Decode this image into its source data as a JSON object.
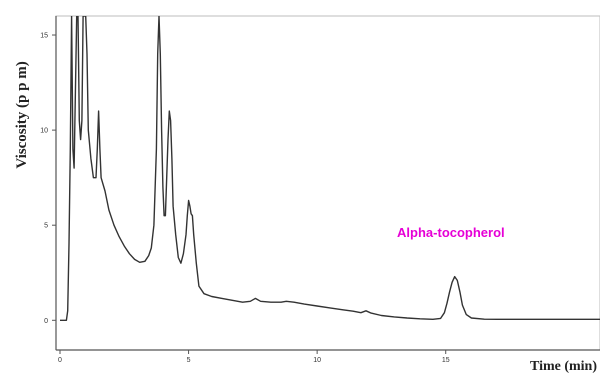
{
  "chart_data": {
    "type": "line",
    "title": "",
    "xlabel": "Time (min)",
    "ylabel": "Viscosity (p p m)",
    "xlim": [
      0,
      21
    ],
    "ylim": [
      -0.3,
      16
    ],
    "grid": false,
    "x_ticks": [
      0,
      5,
      10,
      15
    ],
    "y_ticks": [
      0,
      5,
      10,
      15
    ],
    "x_tick_labels": [
      "0",
      "5",
      "10",
      "15"
    ],
    "y_tick_labels": [
      "0",
      "5",
      "10",
      "15"
    ],
    "line_color": "#333333",
    "annotation": {
      "text": "Alpha-tocopherol",
      "x": 15.2,
      "y": 2.8,
      "color": "#e600d6"
    },
    "series": [
      {
        "values": [
          [
            0,
            0
          ],
          [
            0.25,
            0
          ],
          [
            0.3,
            0.5
          ],
          [
            0.35,
            4
          ],
          [
            0.4,
            9
          ],
          [
            0.45,
            16
          ],
          [
            0.5,
            9
          ],
          [
            0.55,
            8
          ],
          [
            0.65,
            16
          ],
          [
            0.7,
            16
          ],
          [
            0.75,
            10.5
          ],
          [
            0.8,
            9.5
          ],
          [
            0.85,
            10.5
          ],
          [
            0.9,
            16
          ],
          [
            1.0,
            16
          ],
          [
            1.05,
            14
          ],
          [
            1.1,
            10
          ],
          [
            1.2,
            8.5
          ],
          [
            1.3,
            7.5
          ],
          [
            1.4,
            7.5
          ],
          [
            1.45,
            9
          ],
          [
            1.5,
            11
          ],
          [
            1.55,
            9
          ],
          [
            1.6,
            7.5
          ],
          [
            1.75,
            6.8
          ],
          [
            1.9,
            5.8
          ],
          [
            2.1,
            5.0
          ],
          [
            2.3,
            4.4
          ],
          [
            2.5,
            3.9
          ],
          [
            2.7,
            3.5
          ],
          [
            2.9,
            3.2
          ],
          [
            3.1,
            3.05
          ],
          [
            3.3,
            3.1
          ],
          [
            3.45,
            3.4
          ],
          [
            3.55,
            3.8
          ],
          [
            3.65,
            5.0
          ],
          [
            3.75,
            9
          ],
          [
            3.8,
            14
          ],
          [
            3.85,
            16
          ],
          [
            3.9,
            14
          ],
          [
            3.95,
            10
          ],
          [
            4.0,
            7.0
          ],
          [
            4.05,
            5.5
          ],
          [
            4.1,
            5.5
          ],
          [
            4.15,
            7.5
          ],
          [
            4.2,
            9.5
          ],
          [
            4.25,
            11
          ],
          [
            4.3,
            10.5
          ],
          [
            4.35,
            8.5
          ],
          [
            4.4,
            6.0
          ],
          [
            4.5,
            4.5
          ],
          [
            4.6,
            3.3
          ],
          [
            4.7,
            3.0
          ],
          [
            4.8,
            3.5
          ],
          [
            4.9,
            4.5
          ],
          [
            4.95,
            5.5
          ],
          [
            5.0,
            6.3
          ],
          [
            5.05,
            6.0
          ],
          [
            5.1,
            5.6
          ],
          [
            5.15,
            5.5
          ],
          [
            5.2,
            4.5
          ],
          [
            5.3,
            3.0
          ],
          [
            5.4,
            1.8
          ],
          [
            5.6,
            1.4
          ],
          [
            5.9,
            1.25
          ],
          [
            6.3,
            1.15
          ],
          [
            6.7,
            1.05
          ],
          [
            7.1,
            0.95
          ],
          [
            7.4,
            1.0
          ],
          [
            7.6,
            1.15
          ],
          [
            7.8,
            1.0
          ],
          [
            8.2,
            0.95
          ],
          [
            8.6,
            0.95
          ],
          [
            8.8,
            1.0
          ],
          [
            9.1,
            0.95
          ],
          [
            9.5,
            0.85
          ],
          [
            10.0,
            0.75
          ],
          [
            10.5,
            0.65
          ],
          [
            11.0,
            0.55
          ],
          [
            11.4,
            0.48
          ],
          [
            11.7,
            0.4
          ],
          [
            11.9,
            0.5
          ],
          [
            12.1,
            0.38
          ],
          [
            12.5,
            0.25
          ],
          [
            13.0,
            0.18
          ],
          [
            13.5,
            0.12
          ],
          [
            14.0,
            0.08
          ],
          [
            14.5,
            0.05
          ],
          [
            14.8,
            0.1
          ],
          [
            14.95,
            0.4
          ],
          [
            15.05,
            0.9
          ],
          [
            15.15,
            1.5
          ],
          [
            15.25,
            2.0
          ],
          [
            15.35,
            2.3
          ],
          [
            15.45,
            2.1
          ],
          [
            15.55,
            1.5
          ],
          [
            15.65,
            0.8
          ],
          [
            15.8,
            0.3
          ],
          [
            16.0,
            0.12
          ],
          [
            16.5,
            0.06
          ],
          [
            17.0,
            0.05
          ],
          [
            18.0,
            0.05
          ],
          [
            19.0,
            0.05
          ],
          [
            20.0,
            0.05
          ],
          [
            21.0,
            0.05
          ]
        ]
      }
    ]
  }
}
